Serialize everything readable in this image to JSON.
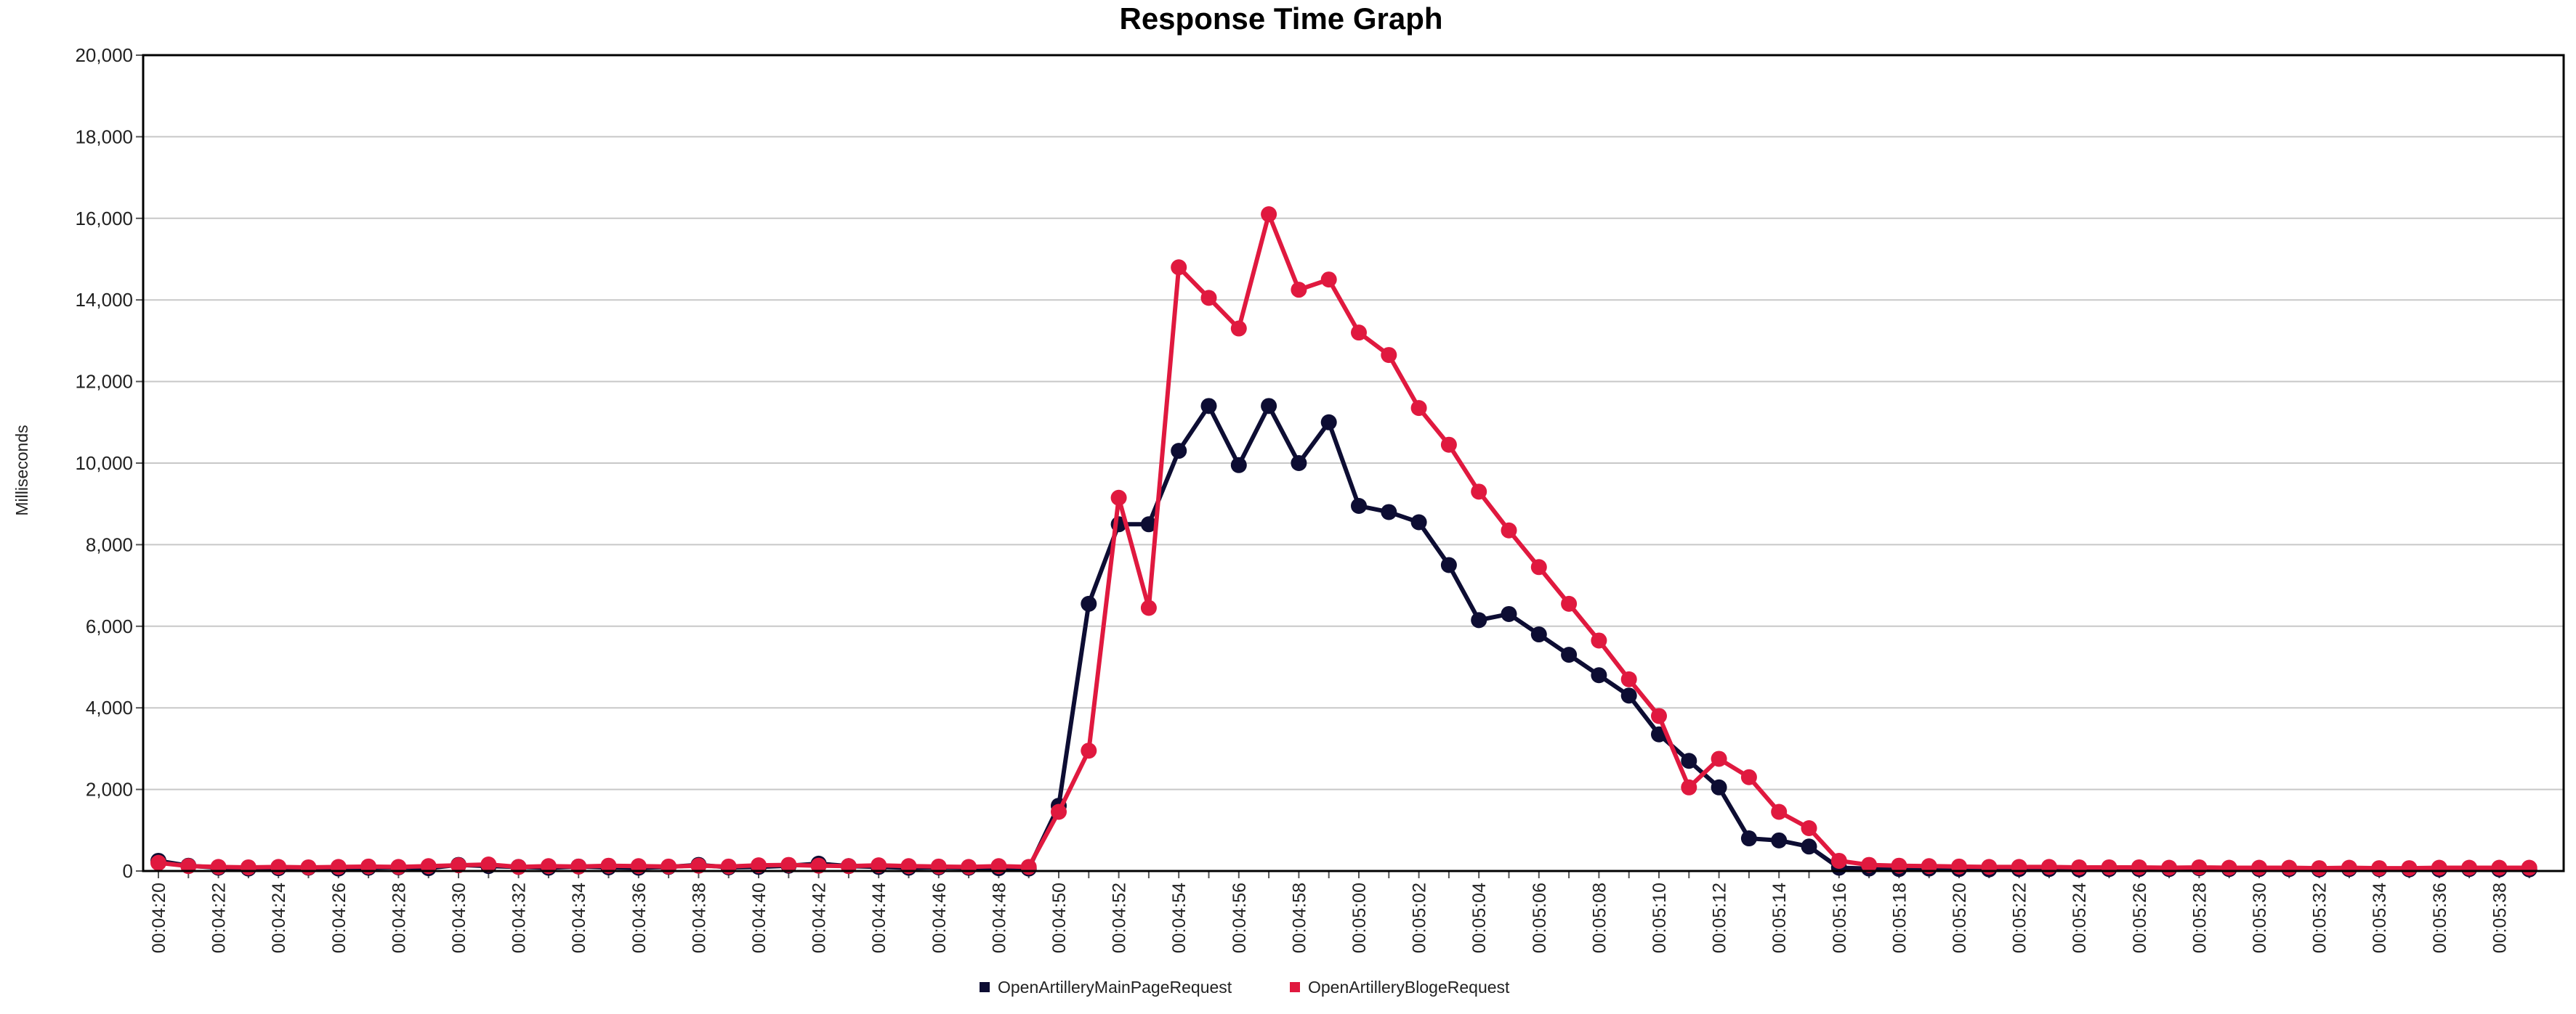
{
  "chart_data": {
    "type": "line",
    "title": "Response Time Graph",
    "ylabel": "Milliseconds",
    "xlabel": "",
    "ylim": [
      0,
      20000
    ],
    "yticks": [
      "0",
      "2,000",
      "4,000",
      "6,000",
      "8,000",
      "10,000",
      "12,000",
      "14,000",
      "16,000",
      "18,000",
      "20,000"
    ],
    "grid": true,
    "legend_position": "bottom-center",
    "x": [
      "00:04:20",
      "00:04:21",
      "00:04:22",
      "00:04:23",
      "00:04:24",
      "00:04:25",
      "00:04:26",
      "00:04:27",
      "00:04:28",
      "00:04:29",
      "00:04:30",
      "00:04:31",
      "00:04:32",
      "00:04:33",
      "00:04:34",
      "00:04:35",
      "00:04:36",
      "00:04:37",
      "00:04:38",
      "00:04:39",
      "00:04:40",
      "00:04:41",
      "00:04:42",
      "00:04:43",
      "00:04:44",
      "00:04:45",
      "00:04:46",
      "00:04:47",
      "00:04:48",
      "00:04:49",
      "00:04:50",
      "00:04:51",
      "00:04:52",
      "00:04:53",
      "00:04:54",
      "00:04:55",
      "00:04:56",
      "00:04:57",
      "00:04:58",
      "00:04:59",
      "00:05:00",
      "00:05:01",
      "00:05:02",
      "00:05:03",
      "00:05:04",
      "00:05:05",
      "00:05:06",
      "00:05:07",
      "00:05:08",
      "00:05:09",
      "00:05:10",
      "00:05:11",
      "00:05:12",
      "00:05:13",
      "00:05:14",
      "00:05:15",
      "00:05:16",
      "00:05:17",
      "00:05:18",
      "00:05:19",
      "00:05:20",
      "00:05:21",
      "00:05:22",
      "00:05:23",
      "00:05:24",
      "00:05:25",
      "00:05:26",
      "00:05:27",
      "00:05:28",
      "00:05:29",
      "00:05:30",
      "00:05:31",
      "00:05:32",
      "00:05:33",
      "00:05:34",
      "00:05:35",
      "00:05:36",
      "00:05:37",
      "00:05:38",
      "00:05:39"
    ],
    "xtick_labels": [
      "00:04:20",
      "00:04:22",
      "00:04:24",
      "00:04:26",
      "00:04:28",
      "00:04:30",
      "00:04:32",
      "00:04:34",
      "00:04:36",
      "00:04:38",
      "00:04:40",
      "00:04:42",
      "00:04:44",
      "00:04:46",
      "00:04:48",
      "00:04:50",
      "00:04:52",
      "00:04:54",
      "00:04:56",
      "00:04:58",
      "00:05:00",
      "00:05:02",
      "00:05:04",
      "00:05:06",
      "00:05:08",
      "00:05:10",
      "00:05:12",
      "00:05:14",
      "00:05:16",
      "00:05:18",
      "00:05:20",
      "00:05:22",
      "00:05:24",
      "00:05:26",
      "00:05:28",
      "00:05:30",
      "00:05:32",
      "00:05:34",
      "00:05:36",
      "00:05:38"
    ],
    "series": [
      {
        "name": "OpenArtilleryMainPageRequest",
        "color": "#0d0d33",
        "values": [
          250,
          130,
          80,
          60,
          70,
          80,
          60,
          80,
          90,
          70,
          150,
          120,
          100,
          80,
          110,
          90,
          80,
          100,
          150,
          90,
          100,
          130,
          180,
          120,
          100,
          80,
          90,
          80,
          70,
          60,
          1600,
          6550,
          8500,
          8500,
          10300,
          11400,
          9950,
          11400,
          10000,
          11000,
          8950,
          8800,
          8550,
          7500,
          6150,
          6300,
          5800,
          5300,
          4800,
          4300,
          3350,
          2700,
          2050,
          800,
          750,
          600,
          80,
          60,
          50,
          60,
          50,
          40,
          50,
          50,
          40,
          50,
          50,
          50,
          70,
          50,
          50,
          50,
          40,
          50,
          50,
          40,
          40,
          50,
          40,
          40
        ]
      },
      {
        "name": "OpenArtilleryBlogeRequest",
        "color": "#e0193f",
        "values": [
          200,
          120,
          100,
          90,
          100,
          90,
          100,
          110,
          100,
          120,
          140,
          160,
          100,
          120,
          110,
          130,
          120,
          110,
          130,
          110,
          140,
          150,
          130,
          120,
          140,
          120,
          110,
          100,
          120,
          100,
          1450,
          2950,
          9150,
          6450,
          14800,
          14050,
          13300,
          16100,
          14250,
          14500,
          13200,
          12650,
          11350,
          10450,
          9300,
          8350,
          7450,
          6550,
          5650,
          4700,
          3800,
          2050,
          2750,
          2300,
          1450,
          1050,
          250,
          150,
          130,
          120,
          110,
          100,
          100,
          100,
          90,
          90,
          90,
          80,
          90,
          80,
          80,
          80,
          70,
          80,
          70,
          70,
          80,
          80,
          80,
          80
        ]
      }
    ]
  }
}
